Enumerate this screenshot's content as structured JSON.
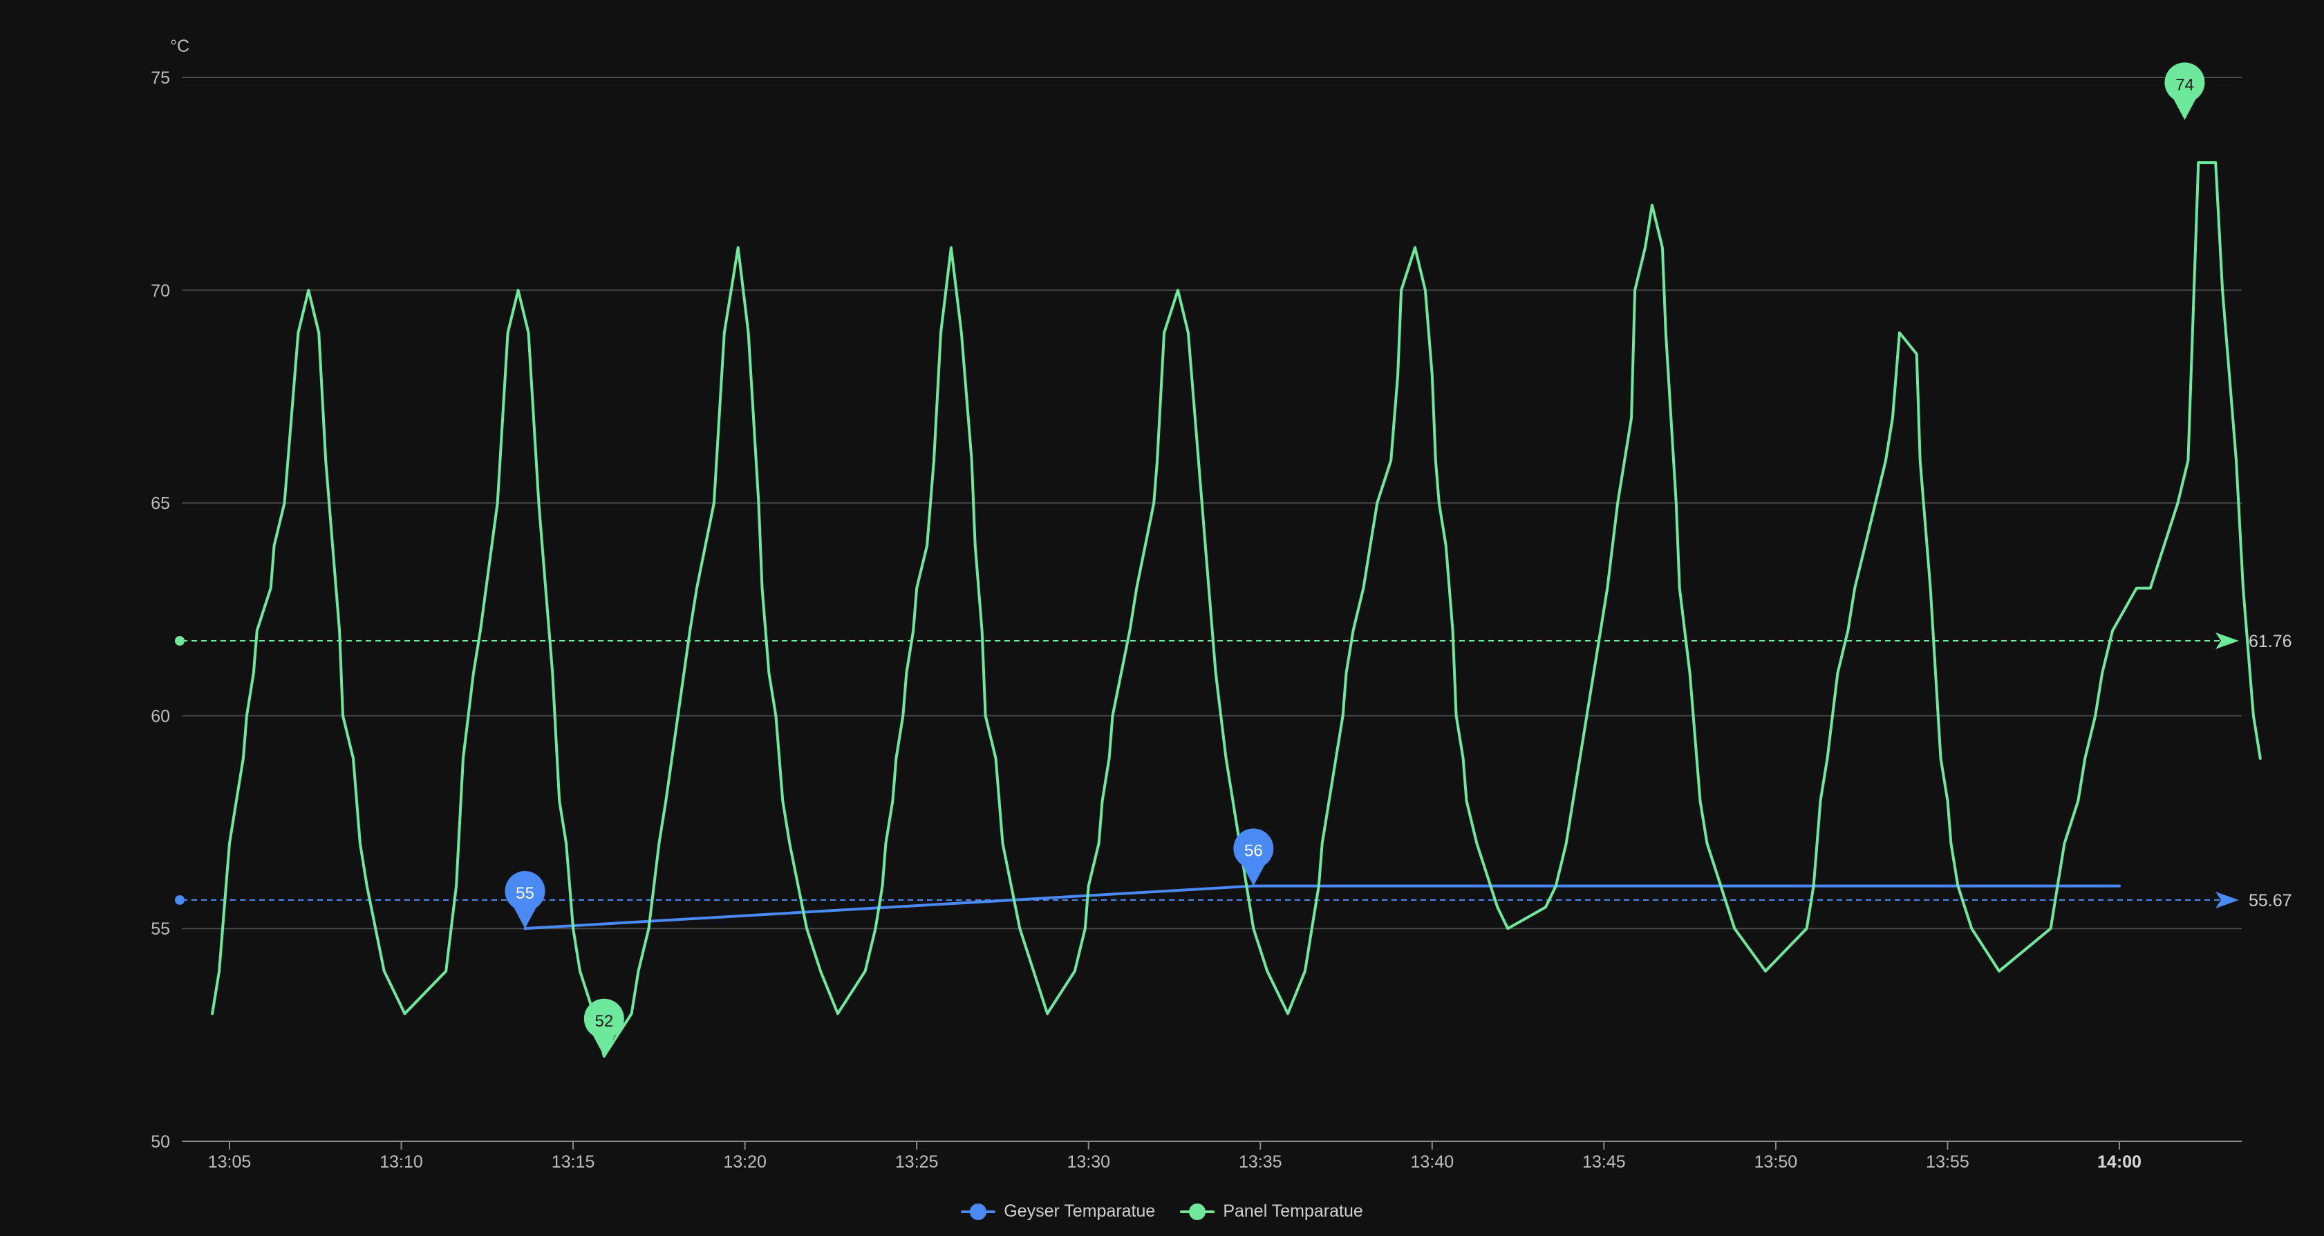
{
  "chart_data": {
    "type": "line",
    "unit": "°C",
    "ylim": [
      50,
      75
    ],
    "yticks": [
      50,
      55,
      60,
      65,
      70,
      75
    ],
    "xlim_minutes": [
      784,
      843.5
    ],
    "xticks": [
      {
        "label": "13:05",
        "minutes": 785,
        "bold": false
      },
      {
        "label": "13:10",
        "minutes": 790,
        "bold": false
      },
      {
        "label": "13:15",
        "minutes": 795,
        "bold": false
      },
      {
        "label": "13:20",
        "minutes": 800,
        "bold": false
      },
      {
        "label": "13:25",
        "minutes": 805,
        "bold": false
      },
      {
        "label": "13:30",
        "minutes": 810,
        "bold": false
      },
      {
        "label": "13:35",
        "minutes": 815,
        "bold": false
      },
      {
        "label": "13:40",
        "minutes": 820,
        "bold": false
      },
      {
        "label": "13:45",
        "minutes": 825,
        "bold": false
      },
      {
        "label": "13:50",
        "minutes": 830,
        "bold": false
      },
      {
        "label": "13:55",
        "minutes": 835,
        "bold": false
      },
      {
        "label": "14:00",
        "minutes": 840,
        "bold": true
      }
    ],
    "grid": true,
    "legend_position": "bottom-center",
    "series": [
      {
        "name": "Geyser Temparatue",
        "color": "#4a8af4",
        "average": 55.67,
        "average_label": "55.67",
        "markers": [
          {
            "x": 793.6,
            "y": 55,
            "label": "55"
          },
          {
            "x": 814.8,
            "y": 56,
            "label": "56"
          }
        ],
        "points": [
          [
            793.6,
            55
          ],
          [
            814.8,
            56
          ],
          [
            840,
            56
          ]
        ]
      },
      {
        "name": "Panel Temparatue",
        "color": "#6ee99c",
        "average": 61.76,
        "average_label": "61.76",
        "markers": [
          {
            "x": 795.9,
            "y": 52,
            "label": "52"
          },
          {
            "x": 841.9,
            "y": 74,
            "label": "74"
          }
        ],
        "points": [
          [
            784.5,
            53
          ],
          [
            784.7,
            54
          ],
          [
            784.9,
            56
          ],
          [
            785.0,
            57
          ],
          [
            785.2,
            58
          ],
          [
            785.4,
            59
          ],
          [
            785.5,
            60
          ],
          [
            785.7,
            61
          ],
          [
            785.8,
            62
          ],
          [
            786.0,
            62.5
          ],
          [
            786.2,
            63
          ],
          [
            786.3,
            64
          ],
          [
            786.6,
            65
          ],
          [
            786.8,
            67
          ],
          [
            787.0,
            69
          ],
          [
            787.3,
            70
          ],
          [
            787.6,
            69
          ],
          [
            787.8,
            66
          ],
          [
            788.0,
            64
          ],
          [
            788.2,
            62
          ],
          [
            788.3,
            60
          ],
          [
            788.6,
            59
          ],
          [
            788.8,
            57
          ],
          [
            789.0,
            56
          ],
          [
            789.5,
            54
          ],
          [
            790.1,
            53
          ],
          [
            791.3,
            54
          ],
          [
            791.6,
            56
          ],
          [
            791.8,
            59
          ],
          [
            792.1,
            61
          ],
          [
            792.3,
            62
          ],
          [
            792.8,
            65
          ],
          [
            793.1,
            69
          ],
          [
            793.4,
            70
          ],
          [
            793.7,
            69
          ],
          [
            794.0,
            65
          ],
          [
            794.2,
            63
          ],
          [
            794.4,
            61
          ],
          [
            794.6,
            58
          ],
          [
            794.8,
            57
          ],
          [
            795.0,
            55
          ],
          [
            795.2,
            54
          ],
          [
            795.6,
            53
          ],
          [
            795.9,
            52
          ],
          [
            796.7,
            53
          ],
          [
            796.9,
            54
          ],
          [
            797.2,
            55
          ],
          [
            797.5,
            57
          ],
          [
            797.7,
            58
          ],
          [
            798.4,
            62
          ],
          [
            798.6,
            63
          ],
          [
            799.1,
            65
          ],
          [
            799.4,
            69
          ],
          [
            799.8,
            71
          ],
          [
            800.1,
            69
          ],
          [
            800.4,
            65
          ],
          [
            800.5,
            63
          ],
          [
            800.7,
            61
          ],
          [
            800.9,
            60
          ],
          [
            801.1,
            58
          ],
          [
            801.3,
            57
          ],
          [
            801.8,
            55
          ],
          [
            802.2,
            54
          ],
          [
            802.7,
            53
          ],
          [
            803.5,
            54
          ],
          [
            803.8,
            55
          ],
          [
            804.0,
            56
          ],
          [
            804.1,
            57
          ],
          [
            804.3,
            58
          ],
          [
            804.4,
            59
          ],
          [
            804.6,
            60
          ],
          [
            804.7,
            61
          ],
          [
            804.9,
            62
          ],
          [
            805.0,
            63
          ],
          [
            805.3,
            64
          ],
          [
            805.5,
            66
          ],
          [
            805.7,
            69
          ],
          [
            806.0,
            71
          ],
          [
            806.3,
            69
          ],
          [
            806.6,
            66
          ],
          [
            806.7,
            64
          ],
          [
            806.9,
            62
          ],
          [
            807.0,
            60
          ],
          [
            807.3,
            59
          ],
          [
            807.5,
            57
          ],
          [
            808.0,
            55
          ],
          [
            808.8,
            53
          ],
          [
            809.6,
            54
          ],
          [
            809.9,
            55
          ],
          [
            810.0,
            56
          ],
          [
            810.3,
            57
          ],
          [
            810.4,
            58
          ],
          [
            810.6,
            59
          ],
          [
            810.7,
            60
          ],
          [
            811.2,
            62
          ],
          [
            811.4,
            63
          ],
          [
            811.9,
            65
          ],
          [
            812.0,
            66
          ],
          [
            812.2,
            69
          ],
          [
            812.6,
            70
          ],
          [
            812.9,
            69
          ],
          [
            813.2,
            66
          ],
          [
            813.4,
            64
          ],
          [
            813.6,
            62
          ],
          [
            813.7,
            61
          ],
          [
            814.0,
            59
          ],
          [
            814.4,
            57
          ],
          [
            814.8,
            55
          ],
          [
            815.2,
            54
          ],
          [
            815.8,
            53
          ],
          [
            816.3,
            54
          ],
          [
            816.5,
            55
          ],
          [
            816.7,
            56
          ],
          [
            816.8,
            57
          ],
          [
            817.0,
            58
          ],
          [
            817.2,
            59
          ],
          [
            817.4,
            60
          ],
          [
            817.5,
            61
          ],
          [
            817.7,
            62
          ],
          [
            818.0,
            63
          ],
          [
            818.2,
            64
          ],
          [
            818.4,
            65
          ],
          [
            818.8,
            66
          ],
          [
            819.0,
            68
          ],
          [
            819.1,
            70
          ],
          [
            819.5,
            71
          ],
          [
            819.8,
            70
          ],
          [
            820.0,
            68
          ],
          [
            820.1,
            66
          ],
          [
            820.2,
            65
          ],
          [
            820.4,
            64
          ],
          [
            820.6,
            62
          ],
          [
            820.7,
            60
          ],
          [
            820.9,
            59
          ],
          [
            821.0,
            58
          ],
          [
            821.3,
            57
          ],
          [
            821.9,
            55.5
          ],
          [
            822.2,
            55
          ],
          [
            823.3,
            55.5
          ],
          [
            823.6,
            56
          ],
          [
            823.9,
            57
          ],
          [
            824.1,
            58
          ],
          [
            824.5,
            60
          ],
          [
            824.9,
            62
          ],
          [
            825.1,
            63
          ],
          [
            825.4,
            65
          ],
          [
            825.8,
            67
          ],
          [
            825.9,
            70
          ],
          [
            826.2,
            71
          ],
          [
            826.4,
            72
          ],
          [
            826.7,
            71
          ],
          [
            826.8,
            69
          ],
          [
            827.1,
            65
          ],
          [
            827.2,
            63
          ],
          [
            827.5,
            61
          ],
          [
            827.8,
            58
          ],
          [
            828.0,
            57
          ],
          [
            828.4,
            56
          ],
          [
            828.8,
            55
          ],
          [
            829.7,
            54
          ],
          [
            830.9,
            55
          ],
          [
            831.1,
            56
          ],
          [
            831.2,
            57
          ],
          [
            831.3,
            58
          ],
          [
            831.5,
            59
          ],
          [
            831.8,
            61
          ],
          [
            832.1,
            62
          ],
          [
            832.3,
            63
          ],
          [
            832.6,
            64
          ],
          [
            833.2,
            66
          ],
          [
            833.4,
            67
          ],
          [
            833.6,
            69
          ],
          [
            834.1,
            68.5
          ],
          [
            834.2,
            66
          ],
          [
            834.5,
            63
          ],
          [
            834.8,
            59
          ],
          [
            835.0,
            58
          ],
          [
            835.1,
            57
          ],
          [
            835.3,
            56
          ],
          [
            835.7,
            55
          ],
          [
            836.5,
            54
          ],
          [
            838.0,
            55
          ],
          [
            838.2,
            56
          ],
          [
            838.4,
            57
          ],
          [
            838.8,
            58
          ],
          [
            839.0,
            59
          ],
          [
            839.3,
            60
          ],
          [
            839.5,
            61
          ],
          [
            839.8,
            62
          ],
          [
            840.5,
            63
          ],
          [
            840.9,
            63
          ],
          [
            841.3,
            64
          ],
          [
            841.7,
            65
          ],
          [
            842.0,
            66
          ],
          [
            842.3,
            73
          ],
          [
            842.8,
            73
          ],
          [
            843.0,
            70
          ],
          [
            843.2,
            68
          ],
          [
            843.4,
            66
          ],
          [
            843.6,
            63
          ],
          [
            843.8,
            61
          ],
          [
            843.9,
            60
          ],
          [
            844.1,
            59
          ]
        ]
      }
    ]
  }
}
